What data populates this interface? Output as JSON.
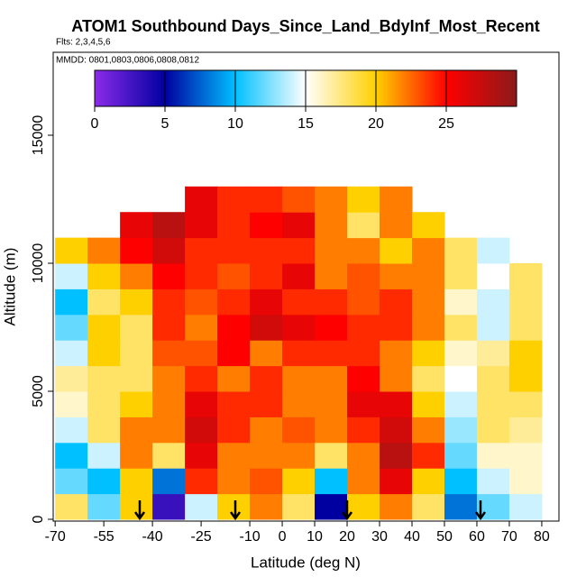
{
  "chart_data": {
    "type": "heatmap",
    "title": "ATOM1 Southbound Days_Since_Land_BdyInf_Most_Recent",
    "subtitle": "Flts: 2,3,4,5,6",
    "annotation": "MMDD: 0801,0803,0806,0808,0812",
    "x_label": "Latitude (deg N)",
    "y_label": "Altitude (m)",
    "xlim": [
      -70.6,
      85.3
    ],
    "ylim": [
      -70,
      18240
    ],
    "xticks": [
      -70,
      -55,
      -40,
      -25,
      -10,
      0,
      10,
      20,
      30,
      40,
      50,
      60,
      70,
      80
    ],
    "yticks": [
      0,
      5000,
      10000,
      15000
    ],
    "x_edges": [
      -70,
      -60,
      -50,
      -40,
      -30,
      -20,
      -10,
      0,
      10,
      20,
      30,
      40,
      50,
      60,
      70,
      80
    ],
    "y_edges": [
      0,
      1000,
      2000,
      3000,
      4000,
      5000,
      6000,
      7000,
      8000,
      9000,
      10000,
      11000,
      12000,
      13000
    ],
    "z": [
      [
        18,
        12,
        20,
        3,
        14,
        20,
        22,
        18,
        5,
        20,
        22,
        18,
        8,
        12,
        14
      ],
      [
        12,
        10,
        20,
        8,
        24,
        22,
        23,
        20,
        10,
        22,
        26,
        20,
        10,
        14,
        16
      ],
      [
        10,
        14,
        22,
        18,
        26,
        22,
        22,
        22,
        18,
        22,
        28,
        24,
        12,
        16,
        16
      ],
      [
        14,
        18,
        22,
        22,
        27,
        24,
        22,
        23,
        22,
        24,
        27,
        22,
        13,
        18,
        17
      ],
      [
        16,
        18,
        20,
        22,
        26,
        24,
        24,
        22,
        22,
        26,
        26,
        20,
        14,
        18,
        18
      ],
      [
        17,
        18,
        18,
        22,
        24,
        22,
        24,
        22,
        22,
        25,
        22,
        18,
        15,
        18,
        20
      ],
      [
        14,
        20,
        18,
        23,
        23,
        25,
        22,
        24,
        24,
        24,
        22,
        20,
        16,
        17,
        20
      ],
      [
        12,
        20,
        18,
        24,
        22,
        25,
        27,
        26,
        25,
        24,
        24,
        22,
        18,
        14,
        18
      ],
      [
        10,
        18,
        20,
        24,
        23,
        24,
        26,
        24,
        24,
        23,
        24,
        22,
        16,
        14,
        18
      ],
      [
        14,
        20,
        22,
        25,
        24,
        23,
        24,
        26,
        22,
        23,
        22,
        22,
        18,
        15,
        18
      ],
      [
        20,
        22,
        25,
        27,
        24,
        24,
        24,
        24,
        22,
        22,
        20,
        22,
        18,
        14,
        null
      ],
      [
        null,
        null,
        26,
        28,
        26,
        24,
        25,
        26,
        22,
        18,
        22,
        20,
        null,
        null,
        null
      ],
      [
        null,
        null,
        null,
        null,
        26,
        24,
        24,
        23,
        22,
        20,
        22,
        null,
        null,
        null,
        null
      ]
    ],
    "colorbar_lim": [
      0,
      30
    ],
    "colorbar_ticks": [
      0,
      5,
      10,
      15,
      20,
      25
    ],
    "colorscale": [
      [
        0,
        "#8b2be8"
      ],
      [
        5,
        "#0000a0"
      ],
      [
        10,
        "#00c0ff"
      ],
      [
        15,
        "#ffffff"
      ],
      [
        20,
        "#ffd000"
      ],
      [
        25,
        "#ff0000"
      ],
      [
        30,
        "#8b1a1a"
      ]
    ]
  }
}
